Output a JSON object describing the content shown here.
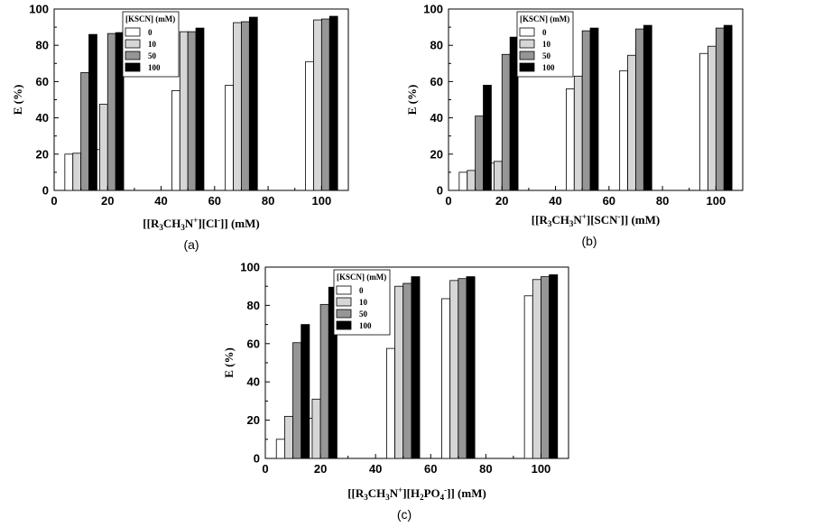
{
  "chart_data": [
    {
      "type": "bar",
      "panel_label": "(a)",
      "x": [
        10,
        20,
        50,
        70,
        100
      ],
      "xlim": [
        0,
        110
      ],
      "ylim": [
        0,
        100
      ],
      "xticks": [
        0,
        20,
        40,
        60,
        80,
        100
      ],
      "yticks": [
        0,
        20,
        40,
        60,
        80,
        100
      ],
      "ylabel": "E (%)",
      "xlabel": {
        "before": "[[R",
        "s1": "3",
        "mid1": "CH",
        "s2": "3",
        "mid2": "N",
        "sup1": "+",
        "mid3": "][Cl",
        "sup2": "-",
        "after": "]] (mM)"
      },
      "legend": {
        "title": "[KSCN] (mM)",
        "placement": "top-left"
      },
      "series": [
        {
          "name": "0",
          "color": "#ffffff",
          "values": [
            20,
            22.5,
            55,
            58,
            71
          ]
        },
        {
          "name": "10",
          "color": "#d6d6d6",
          "values": [
            20.5,
            47.5,
            87.5,
            92.5,
            94
          ]
        },
        {
          "name": "50",
          "color": "#969696",
          "values": [
            65,
            86.5,
            87.5,
            93,
            94.5
          ]
        },
        {
          "name": "100",
          "color": "#000000",
          "values": [
            86,
            87,
            89.5,
            95.5,
            96
          ]
        }
      ]
    },
    {
      "type": "bar",
      "panel_label": "(b)",
      "x": [
        10,
        20,
        50,
        70,
        100
      ],
      "xlim": [
        0,
        110
      ],
      "ylim": [
        0,
        100
      ],
      "xticks": [
        0,
        20,
        40,
        60,
        80,
        100
      ],
      "yticks": [
        0,
        20,
        40,
        60,
        80,
        100
      ],
      "ylabel": "E (%)",
      "xlabel": {
        "before": "[[R",
        "s1": "3",
        "mid1": "CH",
        "s2": "3",
        "mid2": "N",
        "sup1": "+",
        "mid3": "][SCN",
        "sup2": "-",
        "after": "]] (mM)"
      },
      "legend": {
        "title": "[KSCN] (mM)",
        "placement": "top-left"
      },
      "series": [
        {
          "name": "0",
          "color": "#ffffff",
          "values": [
            10,
            15,
            56,
            66,
            75.5
          ]
        },
        {
          "name": "10",
          "color": "#d6d6d6",
          "values": [
            11,
            16,
            63,
            74.5,
            79.5
          ]
        },
        {
          "name": "50",
          "color": "#969696",
          "values": [
            41,
            75,
            88,
            89,
            89.5
          ]
        },
        {
          "name": "100",
          "color": "#000000",
          "values": [
            58,
            84.5,
            89.5,
            91,
            91
          ]
        }
      ]
    },
    {
      "type": "bar",
      "panel_label": "(c)",
      "x": [
        10,
        20,
        50,
        70,
        100
      ],
      "xlim": [
        0,
        110
      ],
      "ylim": [
        0,
        100
      ],
      "xticks": [
        0,
        20,
        40,
        60,
        80,
        100
      ],
      "yticks": [
        0,
        20,
        40,
        60,
        80,
        100
      ],
      "ylabel": "E (%)",
      "xlabel": {
        "before": "[[R",
        "s1": "3",
        "mid1": "CH",
        "s2": "3",
        "mid2": "N",
        "sup1": "+",
        "mid3": "][H",
        "s3": "2",
        "mid4": "PO",
        "s4": "4",
        "sup2": "-",
        "after": "]] (mM)"
      },
      "legend": {
        "title": "[KSCN] (mM)",
        "placement": "top-left"
      },
      "series": [
        {
          "name": "0",
          "color": "#ffffff",
          "values": [
            10,
            21,
            57.5,
            83.5,
            85
          ]
        },
        {
          "name": "10",
          "color": "#d6d6d6",
          "values": [
            22,
            31,
            90,
            93,
            93.5
          ]
        },
        {
          "name": "50",
          "color": "#969696",
          "values": [
            60.5,
            80.5,
            91.5,
            94,
            95
          ]
        },
        {
          "name": "100",
          "color": "#000000",
          "values": [
            70,
            89.5,
            95,
            95,
            96
          ]
        }
      ]
    }
  ]
}
